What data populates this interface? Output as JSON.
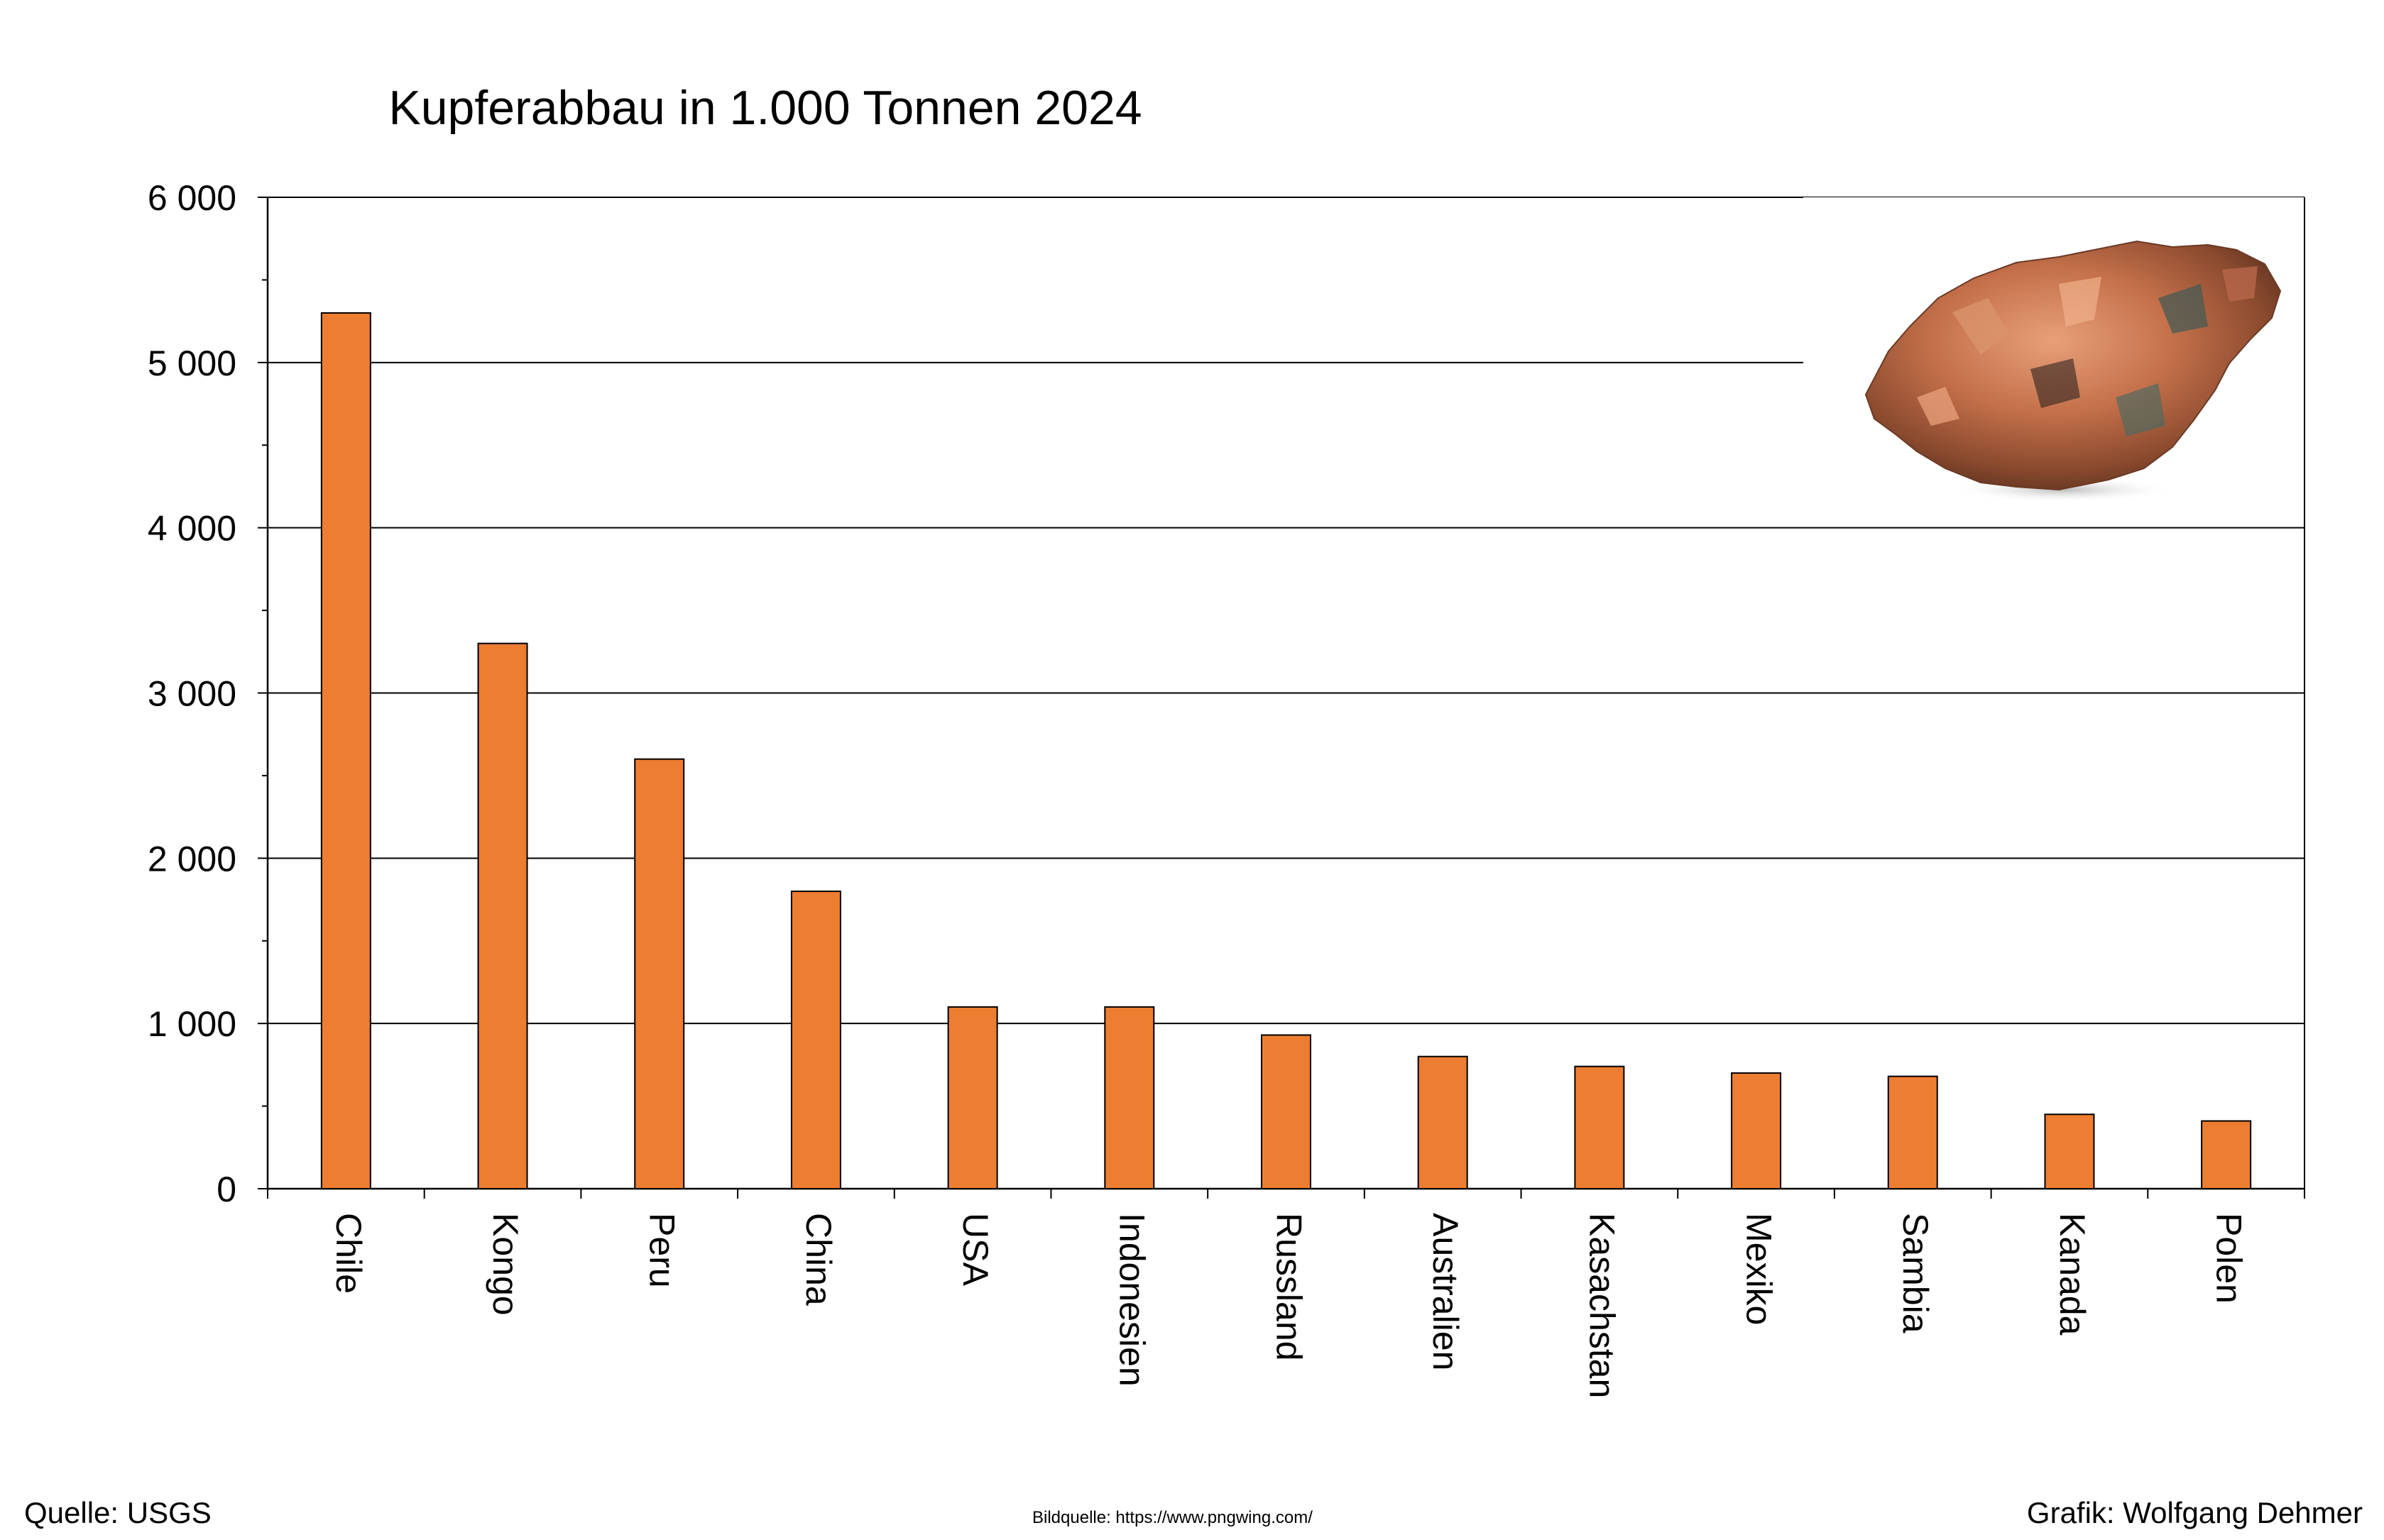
{
  "chart_data": {
    "type": "bar",
    "title": "Kupferabbau in 1.000 Tonnen 2024",
    "xlabel": "",
    "ylabel": "",
    "categories": [
      "Chile",
      "Kongo",
      "Peru",
      "China",
      "USA",
      "Indonesien",
      "Russland",
      "Australien",
      "Kasachstan",
      "Mexiko",
      "Sambia",
      "Kanada",
      "Polen"
    ],
    "values": [
      5300,
      3300,
      2600,
      1800,
      1100,
      1100,
      930,
      800,
      740,
      700,
      680,
      450,
      410
    ],
    "ylim": [
      0,
      6000
    ],
    "yticks": [
      "0",
      "1 000",
      "2 000",
      "3 000",
      "4 000",
      "5 000",
      "6 000"
    ],
    "grid": true,
    "legend": "none",
    "bar_color": "#ED7D31"
  },
  "footer": {
    "source": "Quelle: USGS",
    "image_credit": "Bildquelle: https://www.pngwing.com/",
    "author": "Grafik: Wolfgang Dehmer"
  },
  "image": {
    "icon": "copper-ore-nugget"
  }
}
